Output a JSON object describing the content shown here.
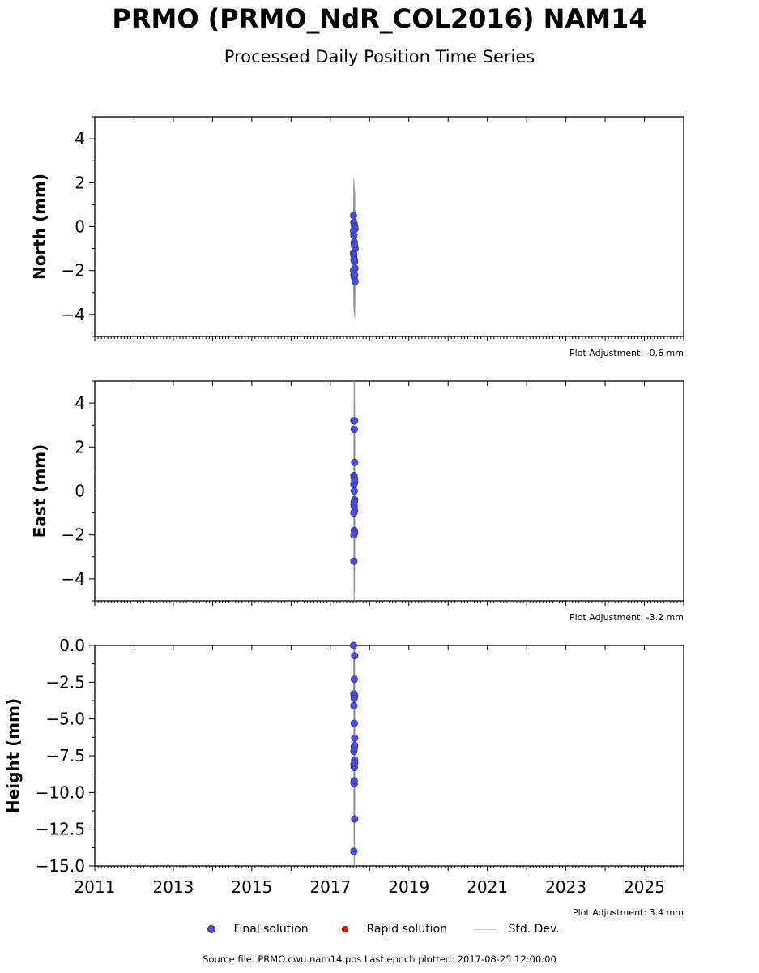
{
  "title": "PRMO (PRMO_NdR_COL2016) NAM14",
  "subtitle": "Processed Daily Position Time Series",
  "chart_data": {
    "type": "scatter",
    "x_axis": {
      "range": [
        2011,
        2026
      ],
      "tick_labels": [
        "2011",
        "2013",
        "2015",
        "2017",
        "2019",
        "2021",
        "2023",
        "2025"
      ]
    },
    "panels": [
      {
        "ylabel": "North (mm)",
        "ylim": [
          -5,
          5
        ],
        "tick_labels": [
          "4",
          "2",
          "0",
          "−2",
          "−4"
        ],
        "adjustment": "Plot Adjustment: -0.6 mm",
        "sd_range": [
          -4.1,
          2.1
        ],
        "x": [
          2017.59,
          2017.6,
          2017.61,
          2017.62,
          2017.63,
          2017.59,
          2017.6,
          2017.61,
          2017.62,
          2017.63,
          2017.59,
          2017.6,
          2017.61,
          2017.62,
          2017.63,
          2017.59,
          2017.6,
          2017.61,
          2017.62,
          2017.63,
          2017.6,
          2017.61
        ],
        "y": [
          0.5,
          0.2,
          0.1,
          0.0,
          -0.1,
          -0.2,
          -0.4,
          -0.7,
          -0.9,
          -1.0,
          -1.2,
          -1.3,
          -1.5,
          -1.6,
          -1.9,
          -2.0,
          -2.2,
          -2.3,
          -2.2,
          -2.5,
          -1.5,
          -0.8
        ]
      },
      {
        "ylabel": "East (mm)",
        "ylim": [
          -5,
          5
        ],
        "tick_labels": [
          "4",
          "2",
          "0",
          "−2",
          "−4"
        ],
        "adjustment": "Plot Adjustment: -3.2 mm",
        "sd_range": [
          -5,
          5
        ],
        "x": [
          2017.6,
          2017.62,
          2017.61,
          2017.62,
          2017.6,
          2017.61,
          2017.62,
          2017.6,
          2017.61,
          2017.62,
          2017.6,
          2017.61,
          2017.62,
          2017.6,
          2017.61,
          2017.62,
          2017.6,
          2017.61,
          2017.62,
          2017.6
        ],
        "y": [
          3.2,
          3.2,
          2.8,
          1.3,
          0.7,
          0.6,
          0.4,
          0.3,
          0.0,
          -0.4,
          -0.6,
          -0.7,
          -0.9,
          -1.0,
          -1.8,
          -1.9,
          -2.0,
          -0.5,
          0.5,
          -3.2
        ]
      },
      {
        "ylabel": "Height (mm)",
        "ylim": [
          -15,
          0
        ],
        "tick_labels": [
          "0.0",
          "−2.5",
          "−5.0",
          "−7.5",
          "−10.0",
          "−12.5",
          "−15.0"
        ],
        "adjustment": "Plot Adjustment: 3.4 mm",
        "sd_range": [
          -15,
          0
        ],
        "x": [
          2017.59,
          2017.62,
          2017.61,
          2017.6,
          2017.61,
          2017.62,
          2017.6,
          2017.61,
          2017.62,
          2017.61,
          2017.6,
          2017.61,
          2017.62,
          2017.6,
          2017.61,
          2017.62,
          2017.6,
          2017.61,
          2017.62,
          2017.6,
          2017.61,
          2017.62,
          2017.61
        ],
        "y": [
          0.0,
          -0.7,
          -2.3,
          -3.3,
          -3.5,
          -3.4,
          -4.1,
          -5.3,
          -6.3,
          -6.9,
          -7.2,
          -7.0,
          -7.8,
          -8.1,
          -8.3,
          -8.0,
          -9.3,
          -9.4,
          -11.8,
          -14.0,
          -3.6,
          -6.8,
          -9.2
        ]
      }
    ],
    "legend": [
      "Final solution",
      "Rapid solution",
      "Std. Dev."
    ],
    "colors": {
      "final": "#4a4af0",
      "rapid": "#e00000",
      "std_dev": "#888888"
    }
  },
  "footer": "Source file: PRMO.cwu.nam14.pos  Last epoch plotted: 2017-08-25 12:00:00"
}
